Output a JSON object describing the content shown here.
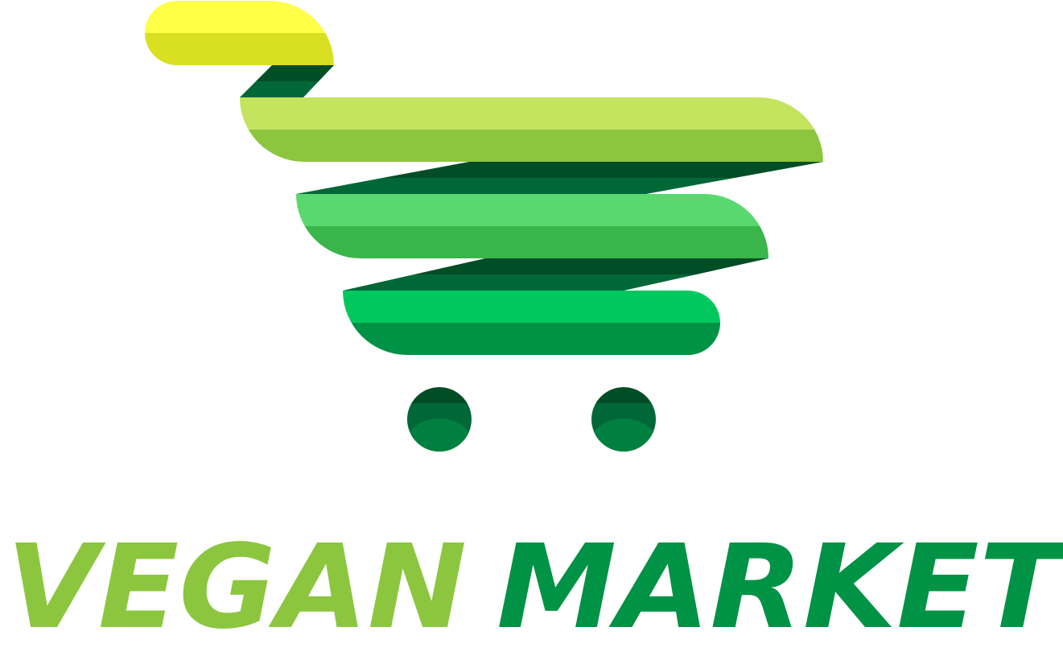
{
  "logo": {
    "icon": "shopping-cart-icon",
    "wordmark": {
      "word1": "VEGAN",
      "word2": "MARKET"
    }
  },
  "colors": {
    "handle_light": "#ffff47",
    "handle_dark": "#d9e021",
    "basket1_light": "#c4e35f",
    "basket1_dark": "#8cc63f",
    "basket2_light": "#58d86e",
    "basket2_dark": "#39b54a",
    "basket3_light": "#00c85f",
    "basket3_dark": "#009245",
    "strut_dark": "#004d26",
    "strut_mid": "#006837",
    "wheel_top": "#004d26",
    "wheel_mid": "#006837",
    "wheel_bottom": "#008040",
    "word1_color": "#8cc63f",
    "word2_color": "#009245"
  }
}
